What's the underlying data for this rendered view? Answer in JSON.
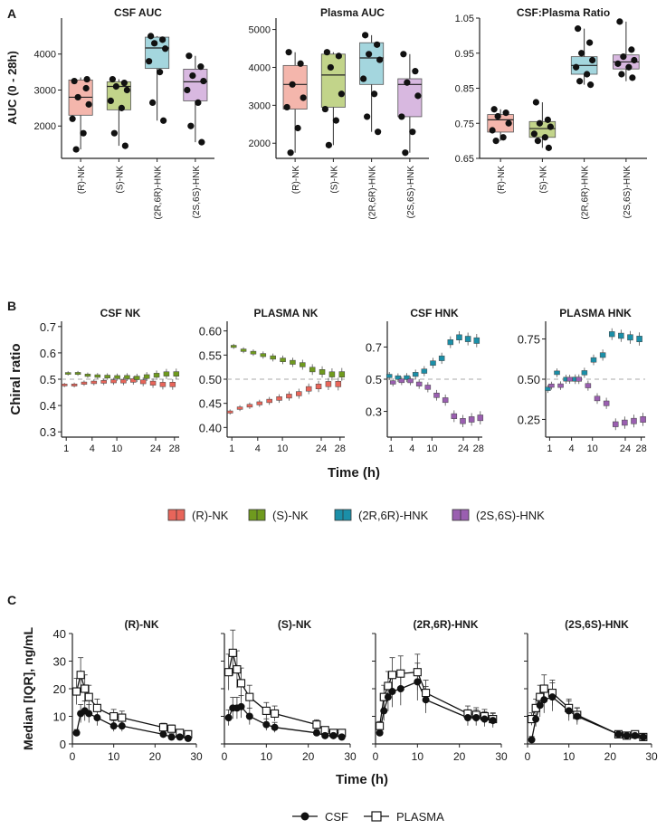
{
  "panel_letters": [
    "A",
    "B",
    "C"
  ],
  "colors": {
    "rnk": "#f4b6ac",
    "rnk_dark": "#e8655a",
    "snk": "#c2d48a",
    "snk_dark": "#6f9a1e",
    "rhnk": "#a4d6de",
    "rhnk_dark": "#1b8fa8",
    "shnk": "#d8b8e0",
    "shnk_dark": "#9a5fb0"
  },
  "chart_data": [
    {
      "type": "box",
      "panel": "A",
      "title": "CSF AUC",
      "ylabel": "AUC (0 - 28h)",
      "ylim": [
        1100,
        5000
      ],
      "yticks": [
        2000,
        3000,
        4000
      ],
      "categories": [
        "(R)-NK",
        "(S)-NK",
        "(2R,6R)-HNK",
        "(2S,6S)-HNK"
      ],
      "boxes": [
        {
          "min": 1350,
          "q1": 2300,
          "median": 2800,
          "q3": 3280,
          "max": 3350
        },
        {
          "min": 1450,
          "q1": 2450,
          "median": 3100,
          "q3": 3230,
          "max": 3300
        },
        {
          "min": 2150,
          "q1": 3600,
          "median": 4170,
          "q3": 4470,
          "max": 4500
        },
        {
          "min": 1550,
          "q1": 2700,
          "median": 3230,
          "q3": 3580,
          "max": 3950
        }
      ],
      "points": [
        [
          3250,
          3050,
          2800,
          2600,
          2200,
          1800,
          1350,
          3300
        ],
        [
          3300,
          3200,
          3100,
          3000,
          2700,
          2500,
          1800,
          1450
        ],
        [
          4500,
          4400,
          4300,
          4150,
          3800,
          3500,
          2650,
          2150
        ],
        [
          3950,
          3650,
          3400,
          3250,
          3000,
          2650,
          2000,
          1550
        ]
      ]
    },
    {
      "type": "box",
      "panel": "A",
      "title": "Plasma AUC",
      "ylim": [
        1600,
        5300
      ],
      "yticks": [
        2000,
        3000,
        4000,
        5000
      ],
      "categories": [
        "(R)-NK",
        "(S)-NK",
        "(2R,6R)-HNK",
        "(2S,6S)-HNK"
      ],
      "boxes": [
        {
          "min": 1750,
          "q1": 2900,
          "median": 3550,
          "q3": 4050,
          "max": 4400
        },
        {
          "min": 1950,
          "q1": 2950,
          "median": 3800,
          "q3": 4350,
          "max": 4400
        },
        {
          "min": 2300,
          "q1": 3550,
          "median": 4250,
          "q3": 4650,
          "max": 4850
        },
        {
          "min": 1750,
          "q1": 2700,
          "median": 3550,
          "q3": 3700,
          "max": 4350
        }
      ],
      "points": [
        [
          4400,
          4100,
          3550,
          3200,
          2950,
          2400,
          1750
        ],
        [
          4400,
          4300,
          4000,
          3300,
          2900,
          2600,
          1950
        ],
        [
          4850,
          4600,
          4350,
          4200,
          3700,
          3300,
          2700,
          2300
        ],
        [
          4350,
          3900,
          3600,
          3250,
          2700,
          2300,
          1750
        ]
      ]
    },
    {
      "type": "box",
      "panel": "A",
      "title": "CSF:Plasma Ratio",
      "ylim": [
        0.65,
        1.05
      ],
      "yticks": [
        0.65,
        0.75,
        0.85,
        0.95,
        1.05
      ],
      "categories": [
        "(R)-NK",
        "(S)-NK",
        "(2R,6R)-HNK",
        "(2S,6S)-HNK"
      ],
      "boxes": [
        {
          "min": 0.7,
          "q1": 0.725,
          "median": 0.76,
          "q3": 0.775,
          "max": 0.79
        },
        {
          "min": 0.68,
          "q1": 0.71,
          "median": 0.735,
          "q3": 0.755,
          "max": 0.81
        },
        {
          "min": 0.86,
          "q1": 0.89,
          "median": 0.915,
          "q3": 0.94,
          "max": 1.02
        },
        {
          "min": 0.87,
          "q1": 0.905,
          "median": 0.925,
          "q3": 0.945,
          "max": 1.04
        }
      ],
      "points": [
        [
          0.79,
          0.78,
          0.77,
          0.75,
          0.73,
          0.71,
          0.7
        ],
        [
          0.81,
          0.76,
          0.75,
          0.74,
          0.72,
          0.71,
          0.7,
          0.68
        ],
        [
          1.02,
          0.98,
          0.95,
          0.93,
          0.91,
          0.89,
          0.87,
          0.86
        ],
        [
          1.04,
          0.96,
          0.94,
          0.93,
          0.92,
          0.91,
          0.89,
          0.88
        ]
      ]
    },
    {
      "type": "box-timecourse",
      "panel": "B",
      "title": "CSF NK",
      "ylabel": "Chiral ratio",
      "xlabel": "Time (h)",
      "ylim": [
        0.28,
        0.72
      ],
      "yticks": [
        0.3,
        0.4,
        0.5,
        0.6,
        0.7
      ],
      "xticks": [
        "1",
        "4",
        "10",
        "24",
        "28"
      ],
      "reference_line": 0.5,
      "series": [
        {
          "name": "(R)-NK",
          "medians": [
            0.478,
            0.478,
            0.485,
            0.488,
            0.49,
            0.492,
            0.492,
            0.495,
            0.49,
            0.485,
            0.48,
            0.48
          ]
        },
        {
          "name": "(S)-NK",
          "medians": [
            0.522,
            0.522,
            0.515,
            0.512,
            0.51,
            0.508,
            0.508,
            0.505,
            0.51,
            0.515,
            0.52,
            0.52
          ]
        }
      ]
    },
    {
      "type": "box-timecourse",
      "panel": "B",
      "title": "PLASMA NK",
      "ylim": [
        0.38,
        0.62
      ],
      "yticks": [
        0.4,
        0.45,
        0.5,
        0.55,
        0.6
      ],
      "xticks": [
        "1",
        "4",
        "10",
        "24",
        "28"
      ],
      "reference_line": 0.5,
      "series": [
        {
          "name": "(R)-NK",
          "medians": [
            0.432,
            0.44,
            0.445,
            0.45,
            0.455,
            0.46,
            0.465,
            0.47,
            0.48,
            0.485,
            0.49,
            0.49
          ]
        },
        {
          "name": "(S)-NK",
          "medians": [
            0.568,
            0.56,
            0.555,
            0.55,
            0.545,
            0.54,
            0.535,
            0.53,
            0.52,
            0.515,
            0.51,
            0.51
          ]
        }
      ]
    },
    {
      "type": "box-timecourse",
      "panel": "B",
      "title": "CSF HNK",
      "ylim": [
        0.14,
        0.86
      ],
      "yticks": [
        0.3,
        0.5,
        0.7
      ],
      "xticks": [
        "1",
        "4",
        "10",
        "24",
        "28"
      ],
      "reference_line": 0.5,
      "series": [
        {
          "name": "(2R,6R)-HNK",
          "medians": [
            0.52,
            0.51,
            0.51,
            0.53,
            0.55,
            0.6,
            0.63,
            0.73,
            0.76,
            0.75,
            0.74
          ]
        },
        {
          "name": "(2S,6S)-HNK",
          "medians": [
            0.48,
            0.49,
            0.49,
            0.47,
            0.45,
            0.4,
            0.37,
            0.27,
            0.24,
            0.25,
            0.26
          ]
        }
      ]
    },
    {
      "type": "box-timecourse",
      "panel": "B",
      "title": "PLASMA HNK",
      "ylim": [
        0.14,
        0.86
      ],
      "yticks": [
        0.25,
        0.5,
        0.75
      ],
      "xticks": [
        "1",
        "4",
        "10",
        "24",
        "28"
      ],
      "reference_line": 0.5,
      "series": [
        {
          "name": "(2R,6R)-HNK",
          "medians": [
            0.44,
            0.54,
            0.5,
            0.5,
            0.54,
            0.62,
            0.65,
            0.78,
            0.77,
            0.76,
            0.75
          ]
        },
        {
          "name": "(2S,6S)-HNK",
          "medians": [
            0.46,
            0.46,
            0.5,
            0.5,
            0.46,
            0.38,
            0.35,
            0.22,
            0.23,
            0.24,
            0.25
          ]
        }
      ]
    },
    {
      "type": "line",
      "panel": "C",
      "title": "(R)-NK",
      "ylabel": "Median [IQR], ng/mL",
      "xlabel": "Time (h)",
      "xlim": [
        0,
        30
      ],
      "ylim": [
        0,
        40
      ],
      "xticks": [
        0,
        10,
        20,
        30
      ],
      "yticks": [
        0,
        10,
        20,
        30,
        40
      ],
      "x": [
        1,
        2,
        3,
        4,
        6,
        10,
        12,
        22,
        24,
        26,
        28
      ],
      "series": [
        {
          "name": "CSF",
          "values": [
            4,
            11,
            12,
            11,
            9.5,
            6.5,
            6.5,
            3.5,
            2.5,
            2.5,
            2
          ]
        },
        {
          "name": "PLASMA",
          "values": [
            19,
            25,
            20,
            17,
            13,
            10,
            9.5,
            6,
            5.5,
            4,
            3.5
          ]
        }
      ]
    },
    {
      "type": "line",
      "panel": "C",
      "title": "(S)-NK",
      "xlim": [
        0,
        30
      ],
      "ylim": [
        0,
        40
      ],
      "xticks": [
        0,
        10,
        20,
        30
      ],
      "x": [
        1,
        2,
        3,
        4,
        6,
        10,
        12,
        22,
        24,
        26,
        28
      ],
      "series": [
        {
          "name": "CSF",
          "values": [
            9.5,
            13,
            13,
            13.5,
            10,
            7,
            6,
            4,
            3,
            3,
            2.5
          ]
        },
        {
          "name": "PLASMA",
          "values": [
            26,
            33,
            27,
            22,
            17,
            12,
            11,
            7,
            5,
            4,
            4
          ]
        }
      ]
    },
    {
      "type": "line",
      "panel": "C",
      "title": "(2R,6R)-HNK",
      "xlim": [
        0,
        30
      ],
      "ylim": [
        0,
        40
      ],
      "xticks": [
        0,
        10,
        20,
        30
      ],
      "x": [
        1,
        2,
        3,
        4,
        6,
        10,
        12,
        22,
        24,
        26,
        28
      ],
      "series": [
        {
          "name": "CSF",
          "values": [
            4,
            12,
            17,
            19,
            20,
            22.5,
            16,
            9.5,
            9.5,
            9,
            8.5
          ]
        },
        {
          "name": "PLASMA",
          "values": [
            6.5,
            17,
            21,
            25,
            25.5,
            26,
            18.5,
            11,
            10.5,
            10,
            9
          ]
        }
      ]
    },
    {
      "type": "line",
      "panel": "C",
      "title": "(2S,6S)-HNK",
      "xlim": [
        0,
        30
      ],
      "ylim": [
        0,
        40
      ],
      "xticks": [
        0,
        10,
        20,
        30
      ],
      "x": [
        1,
        2,
        3,
        4,
        6,
        10,
        12,
        22,
        24,
        26,
        28
      ],
      "series": [
        {
          "name": "CSF",
          "values": [
            1.5,
            9,
            14,
            16,
            17,
            12,
            10,
            3.5,
            3,
            3,
            2.5
          ]
        },
        {
          "name": "PLASMA",
          "values": [
            9,
            13,
            17,
            20,
            18.5,
            13,
            10.5,
            3.5,
            3,
            3.5,
            2.5
          ]
        }
      ]
    }
  ],
  "legend_b": [
    {
      "label": "(R)-NK",
      "key": "rnk"
    },
    {
      "label": "(S)-NK",
      "key": "snk"
    },
    {
      "label": "(2R,6R)-HNK",
      "key": "rhnk"
    },
    {
      "label": "(2S,6S)-HNK",
      "key": "shnk"
    }
  ],
  "legend_c": [
    {
      "label": "CSF",
      "marker": "filled-circle"
    },
    {
      "label": "PLASMA",
      "marker": "open-square"
    }
  ]
}
